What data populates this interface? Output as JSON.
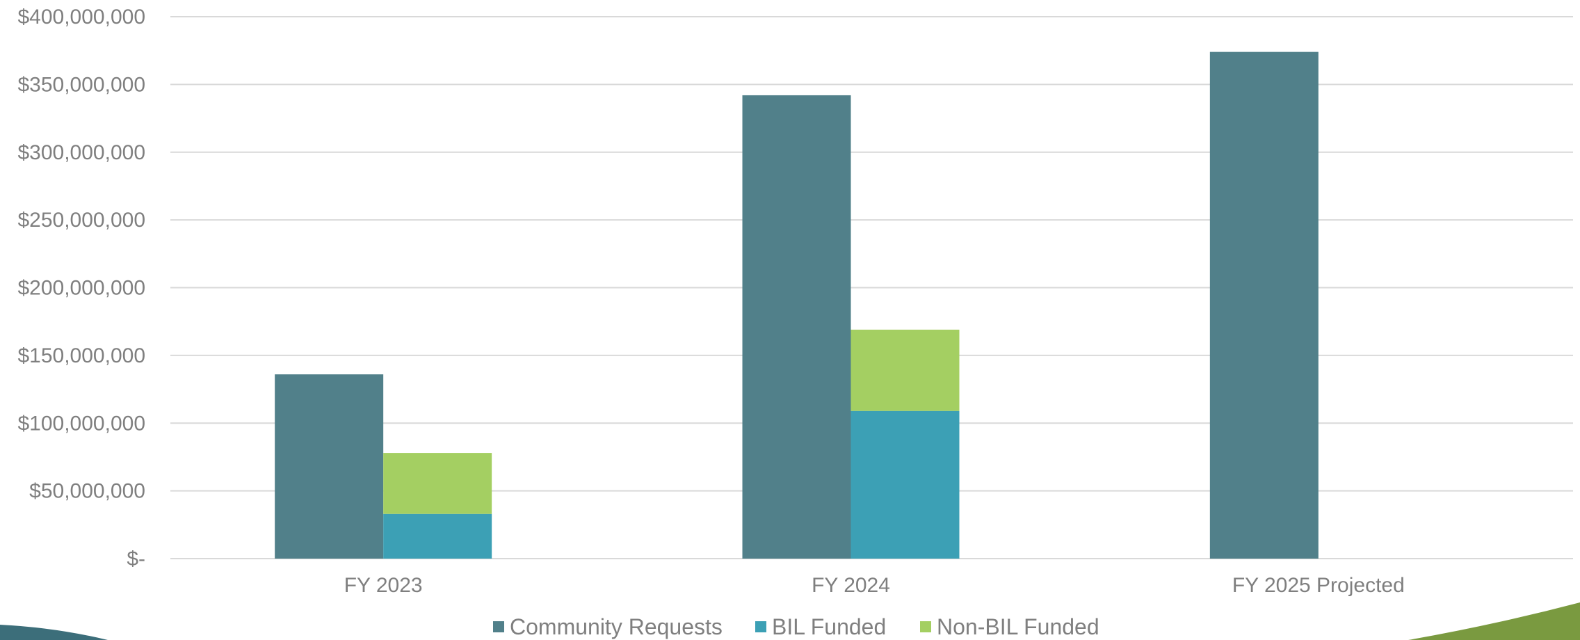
{
  "chart_data": {
    "type": "bar",
    "title": "",
    "xlabel": "",
    "ylabel": "",
    "categories": [
      "FY 2023",
      "FY 2024",
      "FY 2025 Projected"
    ],
    "ylim": [
      0,
      400000000
    ],
    "ytick_values": [
      0,
      50000000,
      100000000,
      150000000,
      200000000,
      250000000,
      300000000,
      350000000,
      400000000
    ],
    "ytick_labels": [
      "$-",
      "$50,000,000",
      "$100,000,000",
      "$150,000,000",
      "$200,000,000",
      "$250,000,000",
      "$300,000,000",
      "$350,000,000",
      "$400,000,000"
    ],
    "grid": true,
    "legend_position": "bottom",
    "stacks": [
      {
        "stack": "requests",
        "series": [
          "Community Requests"
        ]
      },
      {
        "stack": "funded",
        "series": [
          "BIL Funded",
          "Non-BIL Funded"
        ]
      }
    ],
    "series": [
      {
        "name": "Community Requests",
        "stack": "requests",
        "color": "#51808a",
        "values": [
          136000000,
          342000000,
          374000000
        ]
      },
      {
        "name": "BIL Funded",
        "stack": "funded",
        "color": "#3ca0b5",
        "values": [
          33000000,
          109000000,
          null
        ]
      },
      {
        "name": "Non-BIL Funded",
        "stack": "funded",
        "color": "#a4cf62",
        "values": [
          45000000,
          60000000,
          null
        ]
      }
    ]
  },
  "decor": {
    "left_swoosh_color": "#3c6e7a",
    "right_swoosh_color": "#7a9a40"
  }
}
